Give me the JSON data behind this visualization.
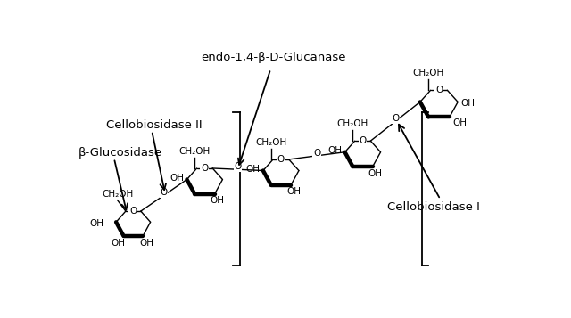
{
  "bg_color": "#ffffff",
  "text_color": "#000000",
  "label_cellobiosidase_II": "Cellobiosidase II",
  "label_beta_glucosidase": "β-Glucosidase",
  "label_endo": "endo-1,4-β-D-Glucanase",
  "label_cellobiosidase_I": "Cellobiosidase I",
  "font_size_label": 9.5,
  "font_size_chem": 7.5,
  "lw_thin": 1.0,
  "lw_thick": 3.2,
  "ring_scale": 1.0
}
